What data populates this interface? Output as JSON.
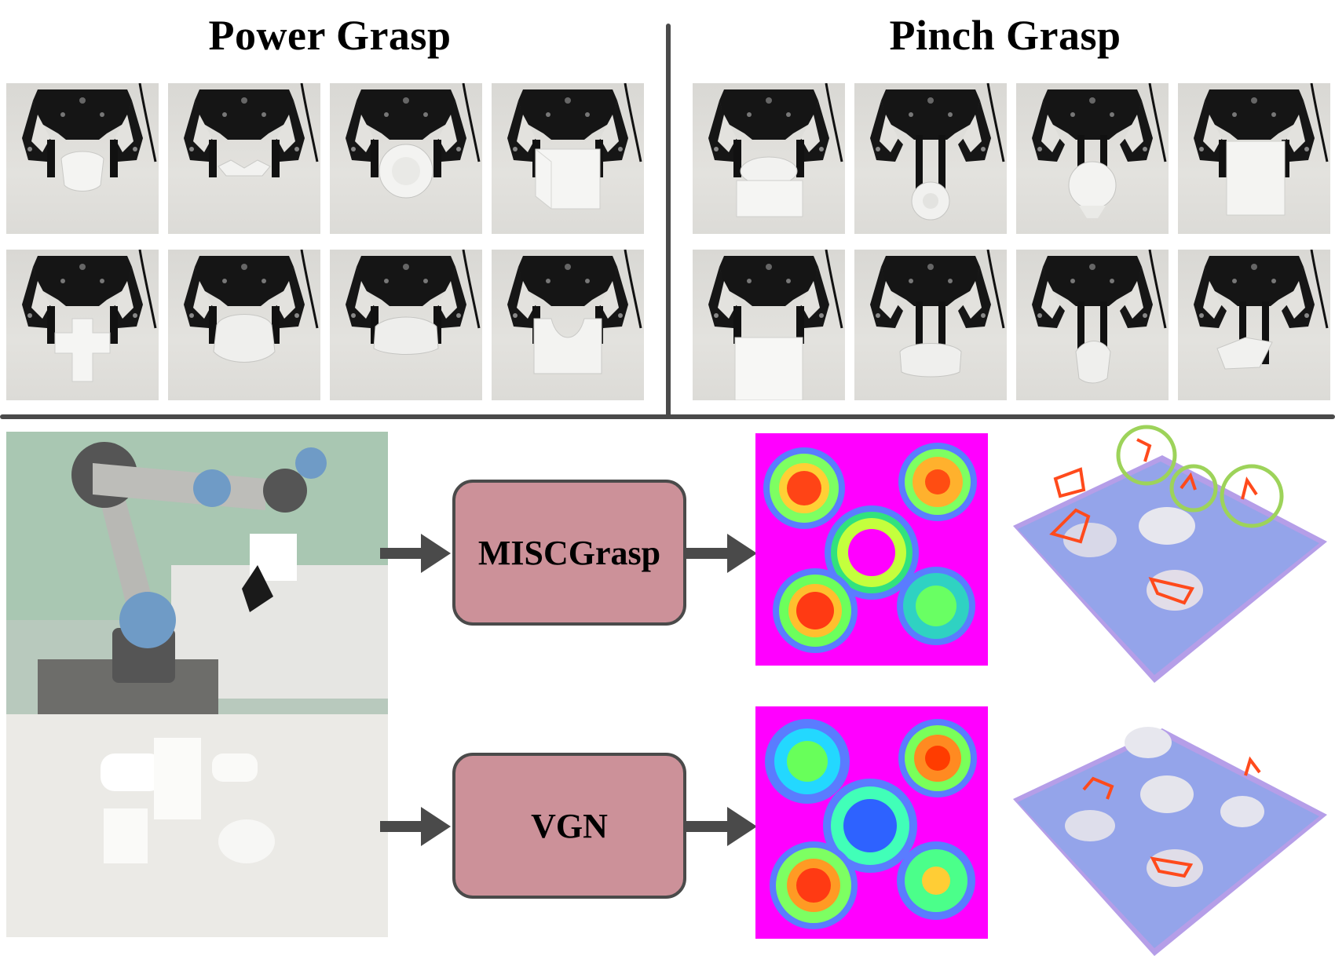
{
  "titles": {
    "power": "Power Grasp",
    "pinch": "Pinch Grasp"
  },
  "pipeline": {
    "method_top": "MISCGrasp",
    "method_bottom": "VGN"
  },
  "colors": {
    "divider": "#4a4a4a",
    "method_box_fill": "#cc9199",
    "heatmap_background": "#ff00ff",
    "heatmap_hot": "#ff3c00",
    "grasp_marker": "#ff4a1c",
    "highlight_circle": "#9dd35a"
  },
  "icons": {
    "arrow": "right-arrow-icon",
    "highlight": "circle-highlight-icon"
  }
}
